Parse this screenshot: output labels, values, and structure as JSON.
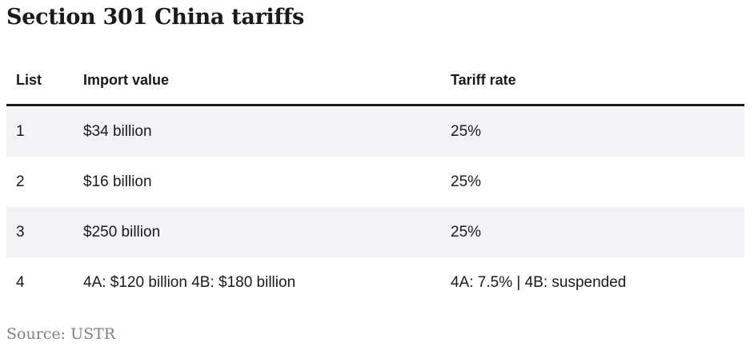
{
  "title": "Section 301 China tariffs",
  "table": {
    "headers": [
      "List",
      "Import value",
      "Tariff rate"
    ],
    "rows": [
      [
        "1",
        "$34 billion",
        "25%"
      ],
      [
        "2",
        "$16 billion",
        "25%"
      ],
      [
        "3",
        "$250 billion",
        "25%"
      ],
      [
        "4",
        "4A: $120 billion 4B: $180 billion",
        "4A: 7.5% | 4B: suspended"
      ]
    ]
  },
  "source": "Source: USTR",
  "colors": {
    "text": "#1a1a1a",
    "row_shade": "#f3f3f6",
    "source_text": "#808080"
  }
}
